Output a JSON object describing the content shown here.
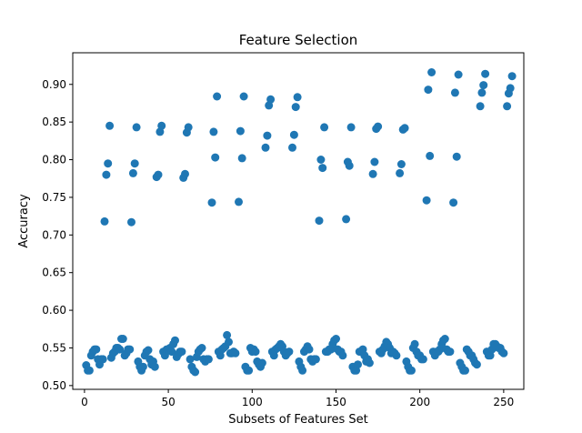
{
  "chart_data": {
    "type": "scatter",
    "title": "Feature Selection",
    "xlabel": "Subsets of Features Set",
    "ylabel": "Accuracy",
    "xlim": [
      -7,
      262
    ],
    "ylim": [
      0.495,
      0.942
    ],
    "xticks": [
      0,
      50,
      100,
      150,
      200,
      250
    ],
    "yticks": [
      0.5,
      0.55,
      0.6,
      0.65,
      0.7,
      0.75,
      0.8,
      0.85,
      0.9
    ],
    "grid": false,
    "legend": "none",
    "marker_color": "#1f77b4",
    "series": [
      {
        "points": [
          [
            1,
            0.527
          ],
          [
            2,
            0.52
          ],
          [
            3,
            0.52
          ],
          [
            4,
            0.54
          ],
          [
            5,
            0.545
          ],
          [
            6,
            0.548
          ],
          [
            7,
            0.548
          ],
          [
            8,
            0.535
          ],
          [
            9,
            0.528
          ],
          [
            10,
            0.535
          ],
          [
            11,
            0.535
          ],
          [
            12,
            0.718
          ],
          [
            13,
            0.78
          ],
          [
            14,
            0.795
          ],
          [
            15,
            0.845
          ],
          [
            16,
            0.537
          ],
          [
            17,
            0.543
          ],
          [
            18,
            0.545
          ],
          [
            19,
            0.55
          ],
          [
            20,
            0.55
          ],
          [
            21,
            0.548
          ],
          [
            22,
            0.562
          ],
          [
            23,
            0.562
          ],
          [
            24,
            0.54
          ],
          [
            25,
            0.543
          ],
          [
            26,
            0.548
          ],
          [
            27,
            0.548
          ],
          [
            28,
            0.717
          ],
          [
            29,
            0.782
          ],
          [
            30,
            0.795
          ],
          [
            31,
            0.843
          ],
          [
            32,
            0.532
          ],
          [
            33,
            0.525
          ],
          [
            34,
            0.52
          ],
          [
            35,
            0.525
          ],
          [
            36,
            0.54
          ],
          [
            37,
            0.545
          ],
          [
            38,
            0.547
          ],
          [
            39,
            0.535
          ],
          [
            40,
            0.528
          ],
          [
            41,
            0.532
          ],
          [
            42,
            0.525
          ],
          [
            43,
            0.777
          ],
          [
            44,
            0.78
          ],
          [
            45,
            0.837
          ],
          [
            46,
            0.845
          ],
          [
            47,
            0.545
          ],
          [
            48,
            0.54
          ],
          [
            49,
            0.548
          ],
          [
            50,
            0.548
          ],
          [
            51,
            0.55
          ],
          [
            52,
            0.545
          ],
          [
            53,
            0.555
          ],
          [
            54,
            0.56
          ],
          [
            55,
            0.538
          ],
          [
            56,
            0.542
          ],
          [
            57,
            0.545
          ],
          [
            58,
            0.545
          ],
          [
            59,
            0.776
          ],
          [
            60,
            0.781
          ],
          [
            61,
            0.836
          ],
          [
            62,
            0.843
          ],
          [
            63,
            0.535
          ],
          [
            64,
            0.525
          ],
          [
            65,
            0.52
          ],
          [
            66,
            0.518
          ],
          [
            67,
            0.538
          ],
          [
            68,
            0.545
          ],
          [
            69,
            0.548
          ],
          [
            70,
            0.55
          ],
          [
            71,
            0.535
          ],
          [
            72,
            0.532
          ],
          [
            73,
            0.535
          ],
          [
            74,
            0.535
          ],
          [
            76,
            0.743
          ],
          [
            77,
            0.837
          ],
          [
            78,
            0.803
          ],
          [
            79,
            0.884
          ],
          [
            80,
            0.545
          ],
          [
            81,
            0.54
          ],
          [
            82,
            0.548
          ],
          [
            83,
            0.55
          ],
          [
            84,
            0.552
          ],
          [
            85,
            0.567
          ],
          [
            86,
            0.558
          ],
          [
            87,
            0.543
          ],
          [
            88,
            0.543
          ],
          [
            89,
            0.545
          ],
          [
            90,
            0.543
          ],
          [
            92,
            0.744
          ],
          [
            93,
            0.838
          ],
          [
            94,
            0.802
          ],
          [
            95,
            0.884
          ],
          [
            96,
            0.525
          ],
          [
            97,
            0.52
          ],
          [
            98,
            0.52
          ],
          [
            99,
            0.55
          ],
          [
            100,
            0.545
          ],
          [
            101,
            0.548
          ],
          [
            102,
            0.545
          ],
          [
            103,
            0.532
          ],
          [
            104,
            0.528
          ],
          [
            105,
            0.525
          ],
          [
            106,
            0.53
          ],
          [
            108,
            0.816
          ],
          [
            109,
            0.832
          ],
          [
            110,
            0.872
          ],
          [
            111,
            0.88
          ],
          [
            112,
            0.545
          ],
          [
            113,
            0.54
          ],
          [
            114,
            0.548
          ],
          [
            115,
            0.55
          ],
          [
            116,
            0.552
          ],
          [
            117,
            0.555
          ],
          [
            118,
            0.552
          ],
          [
            119,
            0.545
          ],
          [
            120,
            0.54
          ],
          [
            121,
            0.543
          ],
          [
            122,
            0.545
          ],
          [
            124,
            0.816
          ],
          [
            125,
            0.833
          ],
          [
            126,
            0.87
          ],
          [
            127,
            0.883
          ],
          [
            128,
            0.532
          ],
          [
            129,
            0.525
          ],
          [
            130,
            0.52
          ],
          [
            131,
            0.545
          ],
          [
            132,
            0.548
          ],
          [
            133,
            0.552
          ],
          [
            134,
            0.548
          ],
          [
            135,
            0.535
          ],
          [
            136,
            0.532
          ],
          [
            137,
            0.535
          ],
          [
            138,
            0.535
          ],
          [
            140,
            0.719
          ],
          [
            141,
            0.8
          ],
          [
            142,
            0.789
          ],
          [
            143,
            0.843
          ],
          [
            144,
            0.545
          ],
          [
            145,
            0.545
          ],
          [
            146,
            0.548
          ],
          [
            147,
            0.548
          ],
          [
            148,
            0.555
          ],
          [
            149,
            0.56
          ],
          [
            150,
            0.562
          ],
          [
            151,
            0.548
          ],
          [
            152,
            0.545
          ],
          [
            153,
            0.545
          ],
          [
            154,
            0.54
          ],
          [
            156,
            0.721
          ],
          [
            157,
            0.797
          ],
          [
            158,
            0.792
          ],
          [
            159,
            0.843
          ],
          [
            160,
            0.525
          ],
          [
            161,
            0.52
          ],
          [
            162,
            0.52
          ],
          [
            163,
            0.528
          ],
          [
            164,
            0.545
          ],
          [
            165,
            0.545
          ],
          [
            166,
            0.548
          ],
          [
            167,
            0.54
          ],
          [
            168,
            0.532
          ],
          [
            169,
            0.535
          ],
          [
            170,
            0.53
          ],
          [
            172,
            0.781
          ],
          [
            173,
            0.797
          ],
          [
            174,
            0.841
          ],
          [
            175,
            0.844
          ],
          [
            176,
            0.545
          ],
          [
            177,
            0.543
          ],
          [
            178,
            0.548
          ],
          [
            179,
            0.552
          ],
          [
            180,
            0.558
          ],
          [
            181,
            0.555
          ],
          [
            182,
            0.55
          ],
          [
            183,
            0.543
          ],
          [
            184,
            0.545
          ],
          [
            185,
            0.543
          ],
          [
            186,
            0.54
          ],
          [
            188,
            0.782
          ],
          [
            189,
            0.794
          ],
          [
            190,
            0.84
          ],
          [
            191,
            0.842
          ],
          [
            192,
            0.532
          ],
          [
            193,
            0.525
          ],
          [
            194,
            0.52
          ],
          [
            195,
            0.52
          ],
          [
            196,
            0.55
          ],
          [
            197,
            0.555
          ],
          [
            198,
            0.545
          ],
          [
            199,
            0.54
          ],
          [
            200,
            0.54
          ],
          [
            201,
            0.535
          ],
          [
            202,
            0.535
          ],
          [
            204,
            0.746
          ],
          [
            205,
            0.893
          ],
          [
            206,
            0.805
          ],
          [
            207,
            0.916
          ],
          [
            208,
            0.545
          ],
          [
            209,
            0.54
          ],
          [
            210,
            0.545
          ],
          [
            211,
            0.545
          ],
          [
            212,
            0.548
          ],
          [
            213,
            0.555
          ],
          [
            214,
            0.56
          ],
          [
            215,
            0.562
          ],
          [
            216,
            0.548
          ],
          [
            217,
            0.545
          ],
          [
            218,
            0.545
          ],
          [
            220,
            0.743
          ],
          [
            221,
            0.889
          ],
          [
            222,
            0.804
          ],
          [
            223,
            0.913
          ],
          [
            224,
            0.53
          ],
          [
            225,
            0.525
          ],
          [
            226,
            0.52
          ],
          [
            227,
            0.52
          ],
          [
            228,
            0.548
          ],
          [
            229,
            0.545
          ],
          [
            230,
            0.54
          ],
          [
            231,
            0.54
          ],
          [
            232,
            0.535
          ],
          [
            233,
            0.53
          ],
          [
            234,
            0.528
          ],
          [
            236,
            0.871
          ],
          [
            237,
            0.889
          ],
          [
            238,
            0.899
          ],
          [
            239,
            0.914
          ],
          [
            240,
            0.545
          ],
          [
            241,
            0.54
          ],
          [
            242,
            0.54
          ],
          [
            243,
            0.548
          ],
          [
            244,
            0.555
          ],
          [
            245,
            0.555
          ],
          [
            246,
            0.552
          ],
          [
            247,
            0.55
          ],
          [
            248,
            0.55
          ],
          [
            249,
            0.545
          ],
          [
            250,
            0.543
          ],
          [
            252,
            0.871
          ],
          [
            253,
            0.888
          ],
          [
            254,
            0.895
          ],
          [
            255,
            0.911
          ]
        ]
      }
    ]
  }
}
